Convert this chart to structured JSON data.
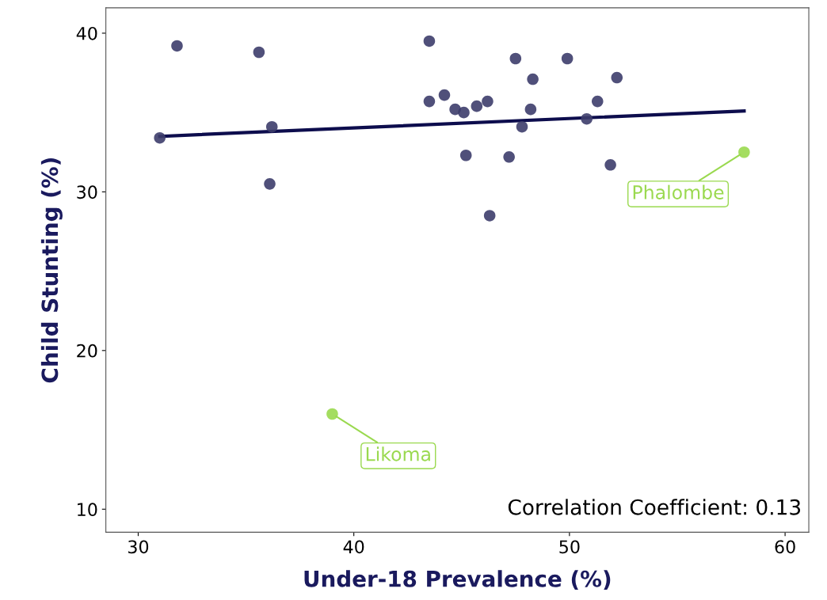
{
  "chart_data": {
    "type": "scatter",
    "xlabel": "Under-18 Prevalence (%)",
    "ylabel": "Child Stunting (%)",
    "xlim": [
      28.5,
      61.1
    ],
    "xticks": [
      30,
      40,
      50,
      60
    ],
    "ylim": [
      8.55,
      41.6
    ],
    "yticks": [
      10,
      20,
      30,
      40
    ],
    "grid": false,
    "series": [
      {
        "color": "#3d3d6b",
        "marker": "circle",
        "x": [
          31.0,
          31.8,
          35.6,
          36.2,
          36.1,
          43.5,
          43.5,
          44.2,
          44.7,
          45.1,
          45.2,
          45.7,
          46.2,
          46.3,
          47.2,
          47.5,
          47.8,
          48.2,
          48.3,
          49.9,
          50.8,
          51.3,
          51.9,
          52.2
        ],
        "values": [
          33.4,
          39.2,
          38.8,
          34.1,
          30.5,
          39.5,
          35.7,
          36.1,
          35.2,
          35.0,
          32.3,
          35.4,
          35.7,
          28.5,
          32.2,
          38.4,
          34.1,
          35.2,
          37.1,
          38.4,
          34.6,
          35.7,
          31.7,
          37.2
        ]
      },
      {
        "color": "#9ad94f",
        "marker": "circle",
        "x": [
          39.0,
          58.1
        ],
        "values": [
          16.0,
          32.5
        ]
      },
      {
        "type": "line",
        "color": "#0d0d4d",
        "x": [
          31.0,
          58.1
        ],
        "values": [
          33.5,
          35.1
        ]
      }
    ],
    "annotations": [
      {
        "text": "Likoma",
        "x": 39.0,
        "y": 16.0
      },
      {
        "text": "Phalombe",
        "x": 58.1,
        "y": 32.5
      },
      "Correlation Coefficient: 0.13"
    ]
  }
}
